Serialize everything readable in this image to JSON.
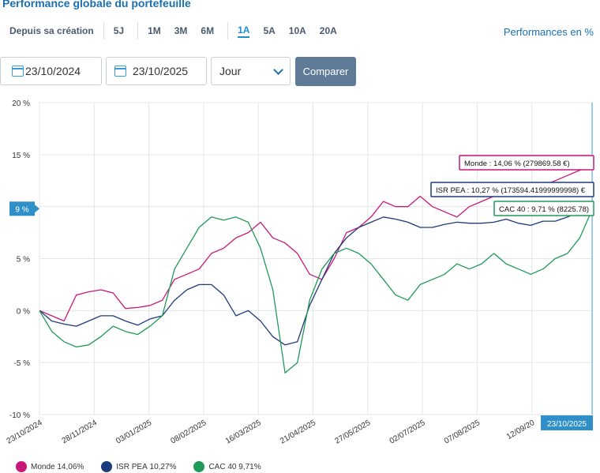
{
  "header": {
    "title": "Performance globale du portefeuille",
    "since_creation": "Depuis sa création",
    "periods_a": [
      "5J"
    ],
    "periods_b": [
      "1M",
      "3M",
      "6M"
    ],
    "periods_c": [
      "1A",
      "5A",
      "10A",
      "20A"
    ],
    "active_period": "1A",
    "perf_unit": "Performances en %"
  },
  "controls": {
    "date_from": "23/10/2024",
    "date_to": "23/10/2025",
    "granularity": "Jour",
    "compare_label": "Comparer"
  },
  "chart_data": {
    "type": "line",
    "ylim": [
      -10,
      20
    ],
    "yticks": [
      "-10 %",
      "-5 %",
      "0 %",
      "5 %",
      "10 %",
      "15 %",
      "20 %"
    ],
    "x_ticks": [
      "23/10/2024",
      "28/11/2024",
      "03/01/2025",
      "08/02/2025",
      "16/03/2025",
      "21/04/2025",
      "27/05/2025",
      "02/07/2025",
      "07/08/2025",
      "12/09/20"
    ],
    "x_last": "23/10/2025",
    "y_marker": "9 %",
    "grid": true,
    "series": [
      {
        "name": "Monde",
        "color": "#c8177a",
        "values": [
          0,
          -0.5,
          -1,
          1.5,
          1.8,
          2,
          1.7,
          0.2,
          0.3,
          0.5,
          1,
          3,
          3.5,
          4,
          5.5,
          6,
          7,
          7.5,
          8.5,
          7,
          6.5,
          5.5,
          3.5,
          3,
          5,
          7.5,
          8,
          9,
          10.5,
          10,
          10,
          11,
          10,
          9.5,
          9,
          10,
          10.5,
          11,
          11,
          11.5,
          11.5,
          12,
          12.5,
          13,
          13.5,
          14.06
        ]
      },
      {
        "name": "ISR PEA",
        "color": "#1d3b7c",
        "values": [
          0,
          -1,
          -1.3,
          -1.5,
          -1,
          -0.5,
          -0.5,
          -1,
          -1.4,
          -0.8,
          -0.5,
          1,
          2,
          2.5,
          2.5,
          1.5,
          -0.5,
          0,
          -1,
          -2.5,
          -3.3,
          -3,
          0.5,
          3,
          5.5,
          7,
          8,
          8.5,
          9,
          8.8,
          8.5,
          8,
          8,
          8.3,
          8.5,
          8.4,
          8.4,
          8.5,
          8.8,
          8.4,
          8.2,
          8.6,
          8.6,
          9,
          9.5,
          10.27
        ]
      },
      {
        "name": "CAC 40",
        "color": "#1f9a58",
        "values": [
          0,
          -2,
          -3,
          -3.5,
          -3.3,
          -2.5,
          -1.5,
          -2,
          -2.3,
          -1.5,
          -0.5,
          4,
          6,
          8,
          9,
          8.7,
          9,
          8.5,
          6,
          2,
          -6,
          -5,
          1,
          4,
          5.5,
          6,
          5.5,
          4.5,
          3,
          1.5,
          1,
          2.5,
          3,
          3.5,
          4.5,
          4,
          4.5,
          5.5,
          4.5,
          4,
          3.5,
          4,
          5,
          5.5,
          7,
          9.71
        ]
      }
    ],
    "tooltips": [
      {
        "label": "Monde : 14,06 % (279869.58 €)",
        "color": "#c8177a"
      },
      {
        "label": "ISR PEA : 10,27 % (173594.41999999998) €",
        "color": "#1d3b7c"
      },
      {
        "label": "CAC 40 : 9,71 % (8225.78)",
        "color": "#1f9a58"
      }
    ],
    "legend": [
      {
        "label": "Monde",
        "value": "14,06%",
        "color": "#c8177a"
      },
      {
        "label": "ISR PEA",
        "value": "10,27%",
        "color": "#1d3b7c"
      },
      {
        "label": "CAC 40",
        "value": "9,71%",
        "color": "#1f9a58"
      }
    ]
  }
}
